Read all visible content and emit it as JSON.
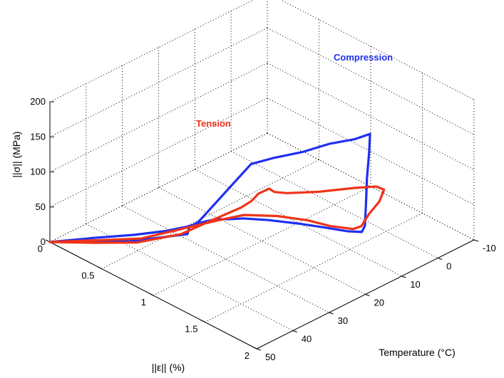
{
  "chart_data": {
    "type": "line",
    "projection": "3d",
    "xlabel": "||ε|| (%)",
    "ylabel": "Temperature (°C)",
    "zlabel": "||σ|| (MPa)",
    "xlim": [
      0,
      2
    ],
    "ylim": [
      -10,
      50
    ],
    "zlim": [
      0,
      200
    ],
    "x_ticks": [
      "0",
      "0.5",
      "1",
      "1.5",
      "2"
    ],
    "y_ticks": [
      "-10",
      "0",
      "10",
      "20",
      "30",
      "40",
      "50"
    ],
    "z_ticks": [
      "0",
      "50",
      "100",
      "150",
      "200"
    ],
    "grid": true,
    "series": [
      {
        "name": "Compression",
        "color": "#1f2ff0",
        "points": [
          {
            "x": 0.0,
            "y": 50,
            "z": 0
          },
          {
            "x": 0.25,
            "y": 45,
            "z": 12
          },
          {
            "x": 0.5,
            "y": 41,
            "z": 25
          },
          {
            "x": 0.7,
            "y": 38,
            "z": 38
          },
          {
            "x": 0.8,
            "y": 35,
            "z": 44
          },
          {
            "x": 0.87,
            "y": 32,
            "z": 49
          },
          {
            "x": 0.91,
            "y": 30,
            "z": 50
          },
          {
            "x": 0.95,
            "y": 28,
            "z": 48
          },
          {
            "x": 1.0,
            "y": 25,
            "z": 45
          },
          {
            "x": 1.1,
            "y": 21,
            "z": 40
          },
          {
            "x": 1.25,
            "y": 17,
            "z": 36
          },
          {
            "x": 1.4,
            "y": 14,
            "z": 34
          },
          {
            "x": 1.55,
            "y": 12,
            "z": 35
          },
          {
            "x": 1.65,
            "y": 11,
            "z": 39
          },
          {
            "x": 1.68,
            "y": 11,
            "z": 50
          },
          {
            "x": 1.69,
            "y": 11,
            "z": 80
          },
          {
            "x": 1.7,
            "y": 11,
            "z": 120
          },
          {
            "x": 1.72,
            "y": 11,
            "z": 155
          },
          {
            "x": 1.73,
            "y": 11,
            "z": 185
          },
          {
            "x": 1.72,
            "y": 15,
            "z": 187
          },
          {
            "x": 1.65,
            "y": 20,
            "z": 188
          },
          {
            "x": 1.6,
            "y": 26,
            "z": 188
          },
          {
            "x": 1.5,
            "y": 31,
            "z": 185
          },
          {
            "x": 1.35,
            "y": 33,
            "z": 170
          },
          {
            "x": 1.25,
            "y": 35,
            "z": 140
          },
          {
            "x": 1.15,
            "y": 37,
            "z": 110
          },
          {
            "x": 1.05,
            "y": 39,
            "z": 80
          },
          {
            "x": 1.0,
            "y": 40,
            "z": 72
          },
          {
            "x": 0.98,
            "y": 40,
            "z": 60
          },
          {
            "x": 0.6,
            "y": 45,
            "z": 34
          },
          {
            "x": 0.0,
            "y": 50,
            "z": 0
          }
        ]
      },
      {
        "name": "Tension",
        "color": "#f03318",
        "points": [
          {
            "x": 0.0,
            "y": 50,
            "z": 0
          },
          {
            "x": 0.3,
            "y": 47,
            "z": 14
          },
          {
            "x": 0.6,
            "y": 43,
            "z": 27
          },
          {
            "x": 0.85,
            "y": 38,
            "z": 45
          },
          {
            "x": 1.0,
            "y": 33,
            "z": 65
          },
          {
            "x": 1.15,
            "y": 30,
            "z": 85
          },
          {
            "x": 1.25,
            "y": 30,
            "z": 102
          },
          {
            "x": 1.28,
            "y": 29,
            "z": 112
          },
          {
            "x": 1.35,
            "y": 28,
            "z": 122
          },
          {
            "x": 1.4,
            "y": 28,
            "z": 121
          },
          {
            "x": 1.45,
            "y": 26,
            "z": 118
          },
          {
            "x": 1.55,
            "y": 20,
            "z": 112
          },
          {
            "x": 1.65,
            "y": 13,
            "z": 107
          },
          {
            "x": 1.72,
            "y": 9,
            "z": 104
          },
          {
            "x": 1.76,
            "y": 8,
            "z": 100
          },
          {
            "x": 1.75,
            "y": 9,
            "z": 85
          },
          {
            "x": 1.72,
            "y": 11,
            "z": 70
          },
          {
            "x": 1.68,
            "y": 12,
            "z": 52
          },
          {
            "x": 1.6,
            "y": 12,
            "z": 42
          },
          {
            "x": 1.45,
            "y": 14,
            "z": 40
          },
          {
            "x": 1.3,
            "y": 16,
            "z": 42
          },
          {
            "x": 1.15,
            "y": 20,
            "z": 47
          },
          {
            "x": 1.0,
            "y": 25,
            "z": 50
          },
          {
            "x": 0.92,
            "y": 30,
            "z": 49
          },
          {
            "x": 0.6,
            "y": 42,
            "z": 30
          },
          {
            "x": 0.0,
            "y": 50,
            "z": 0
          }
        ]
      }
    ],
    "annotations": [
      "Compression",
      "Tension"
    ]
  }
}
